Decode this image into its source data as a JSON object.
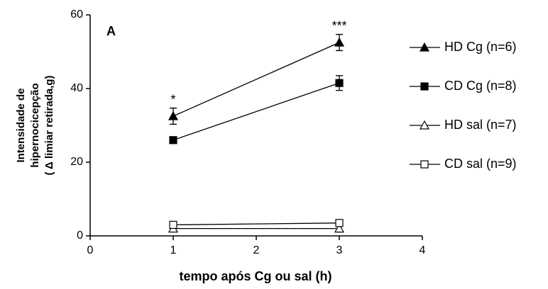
{
  "chart_data": {
    "type": "line",
    "ylabel": [
      "Intensidade de",
      "hipernocicepção",
      "( Δ limiar retirada,g)"
    ],
    "xlabel": "tempo após Cg ou sal (h)",
    "panel_label": "A",
    "x": [
      1,
      3
    ],
    "xlim": [
      0,
      4
    ],
    "xticks": [
      0,
      1,
      2,
      3,
      4
    ],
    "ylim": [
      0,
      60
    ],
    "yticks": [
      0,
      20,
      40,
      60
    ],
    "series": [
      {
        "name": "HD Cg (n=6)",
        "color": "#000000",
        "marker": "triangle",
        "filled": true,
        "values": [
          32.5,
          52.5
        ],
        "errors": [
          2.2,
          2.2
        ]
      },
      {
        "name": "CD Cg (n=8)",
        "color": "#000000",
        "marker": "square",
        "filled": true,
        "values": [
          26,
          41.5
        ],
        "errors": [
          0.5,
          2.0
        ]
      },
      {
        "name": "HD sal (n=7)",
        "color": "#000000",
        "marker": "triangle",
        "filled": false,
        "values": [
          2,
          2
        ]
      },
      {
        "name": "CD sal (n=9)",
        "color": "#000000",
        "marker": "square",
        "filled": false,
        "values": [
          3,
          3.5
        ]
      }
    ],
    "annotations": [
      {
        "text": "*",
        "x": 1
      },
      {
        "text": "***",
        "x": 3
      }
    ]
  }
}
